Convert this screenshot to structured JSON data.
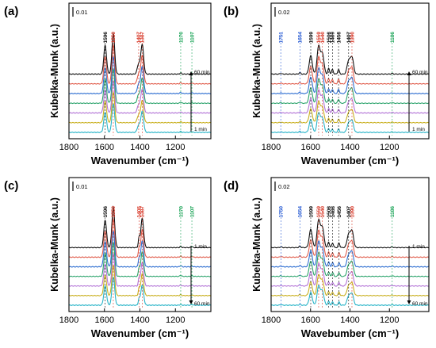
{
  "colors": {
    "traces": [
      "#111111",
      "#e05c4b",
      "#2f6fd1",
      "#2aa36b",
      "#b272d6",
      "#c9b020",
      "#28b4c8"
    ],
    "labelBlack": "#111111",
    "labelRed": "#d83a2a",
    "labelBlue": "#2d5fd4",
    "labelGreen": "#1fa55a"
  },
  "chart_data": [
    {
      "type": "line",
      "panel_label": "(a)",
      "xlabel": "Wavenumber (cm⁻¹)",
      "ylabel": "Kubelka-Munk (a.u.)",
      "xlim": [
        1800,
        1000
      ],
      "x_ticks": [
        "1800",
        "1600",
        "1400",
        "1200"
      ],
      "scale_bar": "0.01",
      "time_order": "bottom-to-top",
      "time_labels": {
        "start": "1 min",
        "end": "60 min"
      },
      "series_count": 7,
      "peaks": [
        {
          "position": 1596,
          "label": "1596",
          "color": "black",
          "height": 1.55
        },
        {
          "position": 1550,
          "label": "1550",
          "color": "red",
          "height": 2.2
        },
        {
          "position": 1407,
          "label": "1407",
          "color": "red",
          "height": 0.55
        },
        {
          "position": 1387,
          "label": "1387",
          "color": "red",
          "height": 1.6
        },
        {
          "position": 1170,
          "label": "1170",
          "color": "green",
          "height": 0.07
        },
        {
          "position": 1107,
          "label": "1107",
          "color": "green",
          "height": 0.05
        }
      ]
    },
    {
      "type": "line",
      "panel_label": "(b)",
      "xlabel": "Wavenumber (cm⁻¹)",
      "ylabel": "Kubelka-Munk (a.u.)",
      "xlim": [
        1800,
        1000
      ],
      "x_ticks": [
        "1800",
        "1600",
        "1400",
        "1200"
      ],
      "scale_bar": "0.02",
      "time_order": "bottom-to-top",
      "time_labels": {
        "start": "1 min",
        "end": "60 min"
      },
      "series_count": 7,
      "peaks": [
        {
          "position": 1751,
          "label": "1751",
          "color": "blue",
          "height": 0.04
        },
        {
          "position": 1654,
          "label": "1654",
          "color": "blue",
          "height": 0.08
        },
        {
          "position": 1599,
          "label": "1599",
          "color": "black",
          "height": 1.0
        },
        {
          "position": 1559,
          "label": "1559",
          "color": "red",
          "height": 1.5
        },
        {
          "position": 1540,
          "label": "1540",
          "color": "red",
          "height": 1.1
        },
        {
          "position": 1508,
          "label": "1508",
          "color": "black",
          "height": 0.3
        },
        {
          "position": 1489,
          "label": "1489",
          "color": "black",
          "height": 0.25
        },
        {
          "position": 1458,
          "label": "1458",
          "color": "black",
          "height": 0.25
        },
        {
          "position": 1407,
          "label": "1407",
          "color": "black",
          "height": 0.7
        },
        {
          "position": 1390,
          "label": "1390",
          "color": "red",
          "height": 0.9
        },
        {
          "position": 1186,
          "label": "1186",
          "color": "green",
          "height": 0.04
        }
      ]
    },
    {
      "type": "line",
      "panel_label": "(c)",
      "xlabel": "Wavenumber (cm⁻¹)",
      "ylabel": "Kubelka-Munk (a.u.)",
      "xlim": [
        1800,
        1000
      ],
      "x_ticks": [
        "1800",
        "1600",
        "1400",
        "1200"
      ],
      "scale_bar": "0.01",
      "time_order": "top-to-bottom",
      "time_labels": {
        "start": "1 min",
        "end": "60 min"
      },
      "series_count": 7,
      "peaks": [
        {
          "position": 1596,
          "label": "1596",
          "color": "black",
          "height": 1.5
        },
        {
          "position": 1550,
          "label": "1550",
          "color": "red",
          "height": 2.2
        },
        {
          "position": 1405,
          "label": "1405",
          "color": "red",
          "height": 0.5
        },
        {
          "position": 1387,
          "label": "1387",
          "color": "red",
          "height": 1.6
        },
        {
          "position": 1170,
          "label": "1170",
          "color": "green",
          "height": 0.07
        },
        {
          "position": 1107,
          "label": "1107",
          "color": "green",
          "height": 0.05
        }
      ]
    },
    {
      "type": "line",
      "panel_label": "(d)",
      "xlabel": "Wavebumber (cm⁻¹)",
      "ylabel": "Kubelka-Munk (a.u.)",
      "xlim": [
        1800,
        1000
      ],
      "x_ticks": [
        "1800",
        "1600",
        "1400",
        "1200"
      ],
      "scale_bar": "0.02",
      "time_order": "top-to-bottom",
      "time_labels": {
        "start": "1 min",
        "end": "60 min"
      },
      "series_count": 7,
      "peaks": [
        {
          "position": 1750,
          "label": "1750",
          "color": "blue",
          "height": 0.04
        },
        {
          "position": 1654,
          "label": "1654",
          "color": "blue",
          "height": 0.08
        },
        {
          "position": 1599,
          "label": "1599",
          "color": "black",
          "height": 1.0
        },
        {
          "position": 1559,
          "label": "1559",
          "color": "red",
          "height": 1.5
        },
        {
          "position": 1540,
          "label": "1540",
          "color": "red",
          "height": 1.1
        },
        {
          "position": 1508,
          "label": "1508",
          "color": "black",
          "height": 0.3
        },
        {
          "position": 1488,
          "label": "1488",
          "color": "black",
          "height": 0.25
        },
        {
          "position": 1456,
          "label": "1456",
          "color": "black",
          "height": 0.25
        },
        {
          "position": 1407,
          "label": "1407",
          "color": "black",
          "height": 0.7
        },
        {
          "position": 1390,
          "label": "1390",
          "color": "red",
          "height": 0.9
        },
        {
          "position": 1186,
          "label": "1186",
          "color": "green",
          "height": 0.04
        }
      ]
    }
  ]
}
